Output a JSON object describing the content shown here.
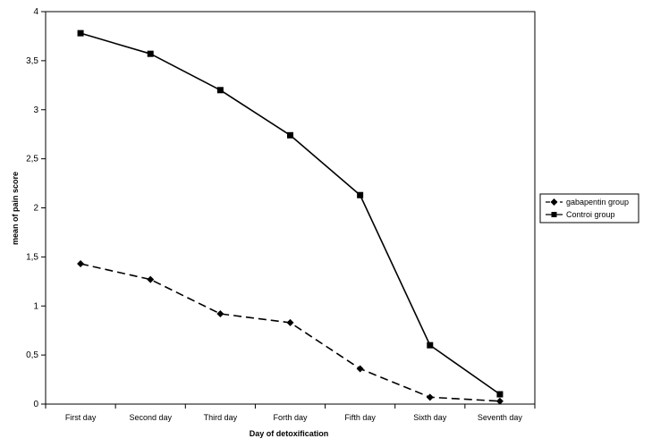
{
  "chart_data": {
    "type": "line",
    "title": "",
    "xlabel": "Day of detoxification",
    "ylabel": "mean of pain score",
    "categories": [
      "First day",
      "Second day",
      "Third day",
      "Forth day",
      "Fifth day",
      "Sixth day",
      "Seventh day"
    ],
    "ylim": [
      0,
      4
    ],
    "yticks": [
      "0",
      "0,5",
      "1",
      "1,5",
      "2",
      "2,5",
      "3",
      "3,5",
      "4"
    ],
    "grid": false,
    "legend_position": "right",
    "series": [
      {
        "name": "gabapentin group",
        "values": [
          1.43,
          1.27,
          0.92,
          0.83,
          0.36,
          0.07,
          0.03
        ],
        "marker": "diamond",
        "line_style": "dashed",
        "color": "#000000"
      },
      {
        "name": "Controi group",
        "values": [
          3.78,
          3.57,
          3.2,
          2.74,
          2.13,
          0.6,
          0.1
        ],
        "marker": "square",
        "line_style": "solid",
        "color": "#000000"
      }
    ]
  }
}
